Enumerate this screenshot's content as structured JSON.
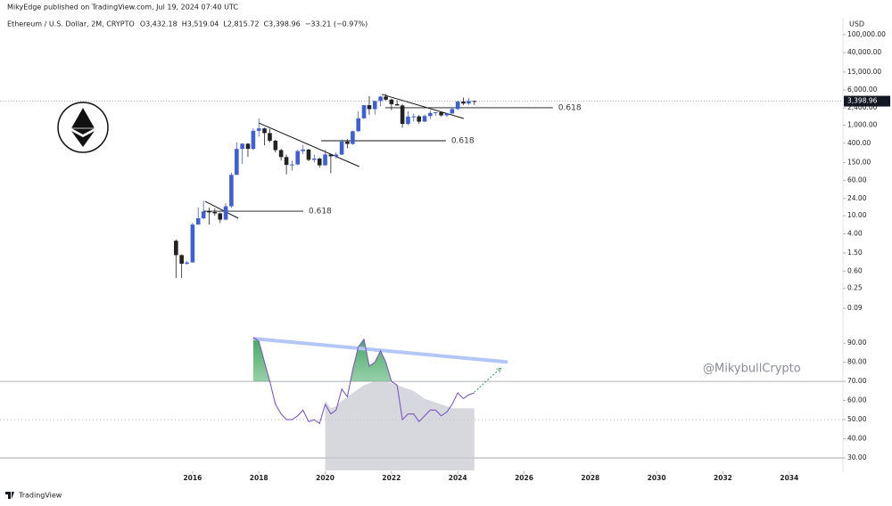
{
  "chart_data": {
    "type": "candlestick",
    "subtitle": "MikyEdge published on TradingView.com, Jul 19, 2024 07:40 UTC",
    "title": "Ethereum / U.S. Dollar, 2M, CRYPTO",
    "ohlc_labels": [
      "O3,432.18",
      "H3,519.04",
      "L2,815.72",
      "C3,398.96",
      "−33.21 (−0.97%)"
    ],
    "currency": "USD",
    "watermark": "@MikybullCrypto",
    "brand": "TradingView",
    "last_price_label": "3,398.96",
    "up_color": "#3f5fd4",
    "down_color": "#222222",
    "log_scale": true,
    "xlim": [
      2010.19,
      2035.62
    ],
    "xticks": [
      2016,
      2018,
      2020,
      2022,
      2024,
      2026,
      2028,
      2030,
      2032,
      2034
    ],
    "ylim": [
      0.048,
      150000
    ],
    "yticks": [
      {
        "value": 100000,
        "label": "100,000.00"
      },
      {
        "value": 40000,
        "label": "40,000.00"
      },
      {
        "value": 15000,
        "label": "15,000.00"
      },
      {
        "value": 6000,
        "label": "6,000.00"
      },
      {
        "value": 2400,
        "label": "2,400.00"
      },
      {
        "value": 1000,
        "label": "1,000.00"
      },
      {
        "value": 400,
        "label": "400.00"
      },
      {
        "value": 150,
        "label": "150.00"
      },
      {
        "value": 60,
        "label": "60.00"
      },
      {
        "value": 24,
        "label": "24.00"
      },
      {
        "value": 10,
        "label": "10.00"
      },
      {
        "value": 4,
        "label": "4.00"
      },
      {
        "value": 1.5,
        "label": "1.50"
      },
      {
        "value": 0.6,
        "label": "0.60"
      },
      {
        "value": 0.25,
        "label": "0.25"
      },
      {
        "value": 0.09,
        "label": "0.09"
      }
    ],
    "x": [
      2015.5,
      2015.67,
      2015.83,
      2016,
      2016.17,
      2016.33,
      2016.5,
      2016.67,
      2016.83,
      2017,
      2017.17,
      2017.33,
      2017.5,
      2017.67,
      2017.83,
      2018,
      2018.17,
      2018.33,
      2018.5,
      2018.67,
      2018.83,
      2019,
      2019.17,
      2019.33,
      2019.5,
      2019.67,
      2019.83,
      2020,
      2020.17,
      2020.33,
      2020.5,
      2020.67,
      2020.83,
      2021,
      2021.17,
      2021.33,
      2021.5,
      2021.67,
      2021.83,
      2022,
      2022.17,
      2022.33,
      2022.5,
      2022.67,
      2022.83,
      2023,
      2023.17,
      2023.33,
      2023.5,
      2023.67,
      2023.83,
      2024,
      2024.17,
      2024.33,
      2024.5
    ],
    "open": [
      2.8,
      1.35,
      0.87,
      0.93,
      6.4,
      8.8,
      12.4,
      12.1,
      11.3,
      8.2,
      16.2,
      80,
      300,
      390,
      300,
      750,
      850,
      670,
      455,
      282,
      198,
      133,
      136,
      268,
      290,
      172,
      183,
      130,
      226,
      206,
      225,
      435,
      386,
      737,
      1420,
      2770,
      2270,
      3430,
      4290,
      3680,
      2920,
      2730,
      1070,
      1550,
      1570,
      1200,
      1600,
      1870,
      1930,
      1650,
      1815,
      2280,
      3340,
      3015,
      3432.18
    ],
    "high": [
      3.0,
      1.4,
      1.0,
      7,
      15.3,
      21.5,
      15,
      14.5,
      11.8,
      19,
      90,
      420,
      400,
      400,
      860,
      1420,
      880,
      830,
      480,
      300,
      225,
      165,
      290,
      365,
      300,
      225,
      195,
      290,
      230,
      255,
      490,
      490,
      760,
      2040,
      2800,
      4380,
      3470,
      4460,
      4870,
      3880,
      3580,
      2950,
      2030,
      1800,
      1680,
      1740,
      2140,
      1940,
      2030,
      1860,
      2400,
      3520,
      4090,
      3980,
      3519.04
    ],
    "low": [
      0.42,
      0.42,
      0.83,
      0.93,
      6.3,
      8.3,
      6.4,
      10,
      6.9,
      8,
      15,
      80,
      140,
      200,
      280,
      560,
      360,
      420,
      250,
      165,
      82,
      100,
      130,
      230,
      160,
      150,
      116,
      128,
      87,
      185,
      220,
      310,
      370,
      715,
      1400,
      1700,
      1720,
      2650,
      3500,
      2150,
      2700,
      880,
      1000,
      1200,
      1070,
      1190,
      1370,
      1620,
      1550,
      1520,
      1780,
      2160,
      2800,
      2820,
      2815.72
    ],
    "close": [
      1.35,
      0.87,
      0.93,
      6.4,
      8.8,
      12.4,
      12.1,
      11.3,
      8.2,
      16.2,
      80,
      300,
      390,
      300,
      750,
      850,
      670,
      455,
      282,
      198,
      133,
      136,
      268,
      290,
      172,
      183,
      130,
      226,
      206,
      225,
      435,
      386,
      737,
      1420,
      2770,
      2270,
      3430,
      4290,
      3680,
      2920,
      2730,
      1070,
      1550,
      1570,
      1200,
      1600,
      1870,
      1930,
      1650,
      1815,
      2280,
      3340,
      3015,
      3432.18,
      3398.96
    ],
    "trendlines": [
      {
        "x": [
          2016.38,
          2017.38
        ],
        "y": [
          20.8,
          8.8
        ]
      },
      {
        "x": [
          2017.99,
          2021.03
        ],
        "y": [
          1125,
          122
        ]
      },
      {
        "x": [
          2021.71,
          2024.18
        ],
        "y": [
          4800,
          1410
        ]
      }
    ],
    "fib_levels": [
      {
        "label": "0.618",
        "value": 12.6,
        "x": [
          2016.32,
          2019.34
        ]
      },
      {
        "label": "0.618",
        "value": 454,
        "x": [
          2019.88,
          2023.64
        ]
      },
      {
        "label": "0.618",
        "value": 2430,
        "x": [
          2021.81,
          2026.87
        ]
      }
    ],
    "indicator": {
      "type": "line",
      "ylim": [
        23.5,
        98
      ],
      "yticks": [
        {
          "value": 30,
          "label": "30.00"
        },
        {
          "value": 40,
          "label": "40.00"
        },
        {
          "value": 50,
          "label": "50.00"
        },
        {
          "value": 60,
          "label": "60.00"
        },
        {
          "value": 70,
          "label": "70.00"
        },
        {
          "value": 80,
          "label": "80.00"
        },
        {
          "value": 90,
          "label": "90.00"
        }
      ],
      "levels": [
        70,
        50,
        30
      ],
      "level_styles": [
        "solid",
        "dotted",
        "solid"
      ],
      "color": "#7e57c2",
      "overbought_color": "#2e9e4f",
      "values": [
        null,
        null,
        null,
        null,
        null,
        null,
        null,
        null,
        null,
        null,
        null,
        null,
        null,
        null,
        93,
        91,
        80,
        70,
        58,
        53,
        50,
        50,
        52,
        55,
        49,
        50,
        48,
        58,
        53,
        55,
        66,
        62,
        76,
        88,
        92,
        78,
        80,
        86,
        80,
        70,
        68,
        50,
        53,
        53,
        49,
        52,
        55,
        55,
        52,
        54,
        58,
        64,
        61,
        63,
        64
      ],
      "area_color": "#c9cbd2",
      "area_values": [
        null,
        null,
        null,
        null,
        null,
        null,
        null,
        null,
        null,
        null,
        null,
        null,
        null,
        null,
        null,
        null,
        null,
        null,
        null,
        null,
        null,
        null,
        null,
        null,
        null,
        null,
        null,
        60,
        56,
        57,
        60,
        62,
        64,
        66,
        68,
        69,
        70,
        70,
        70,
        69,
        68,
        67,
        66,
        65,
        63,
        61,
        60,
        59,
        58,
        57,
        56,
        56,
        56,
        56,
        56
      ],
      "trendline": {
        "x": [
          2017.88,
          2025.46
        ],
        "y": [
          92.3,
          80.2
        ]
      },
      "projection": {
        "x": [
          2024.5,
          2025.3
        ],
        "y": [
          64.4,
          77
        ]
      }
    }
  }
}
